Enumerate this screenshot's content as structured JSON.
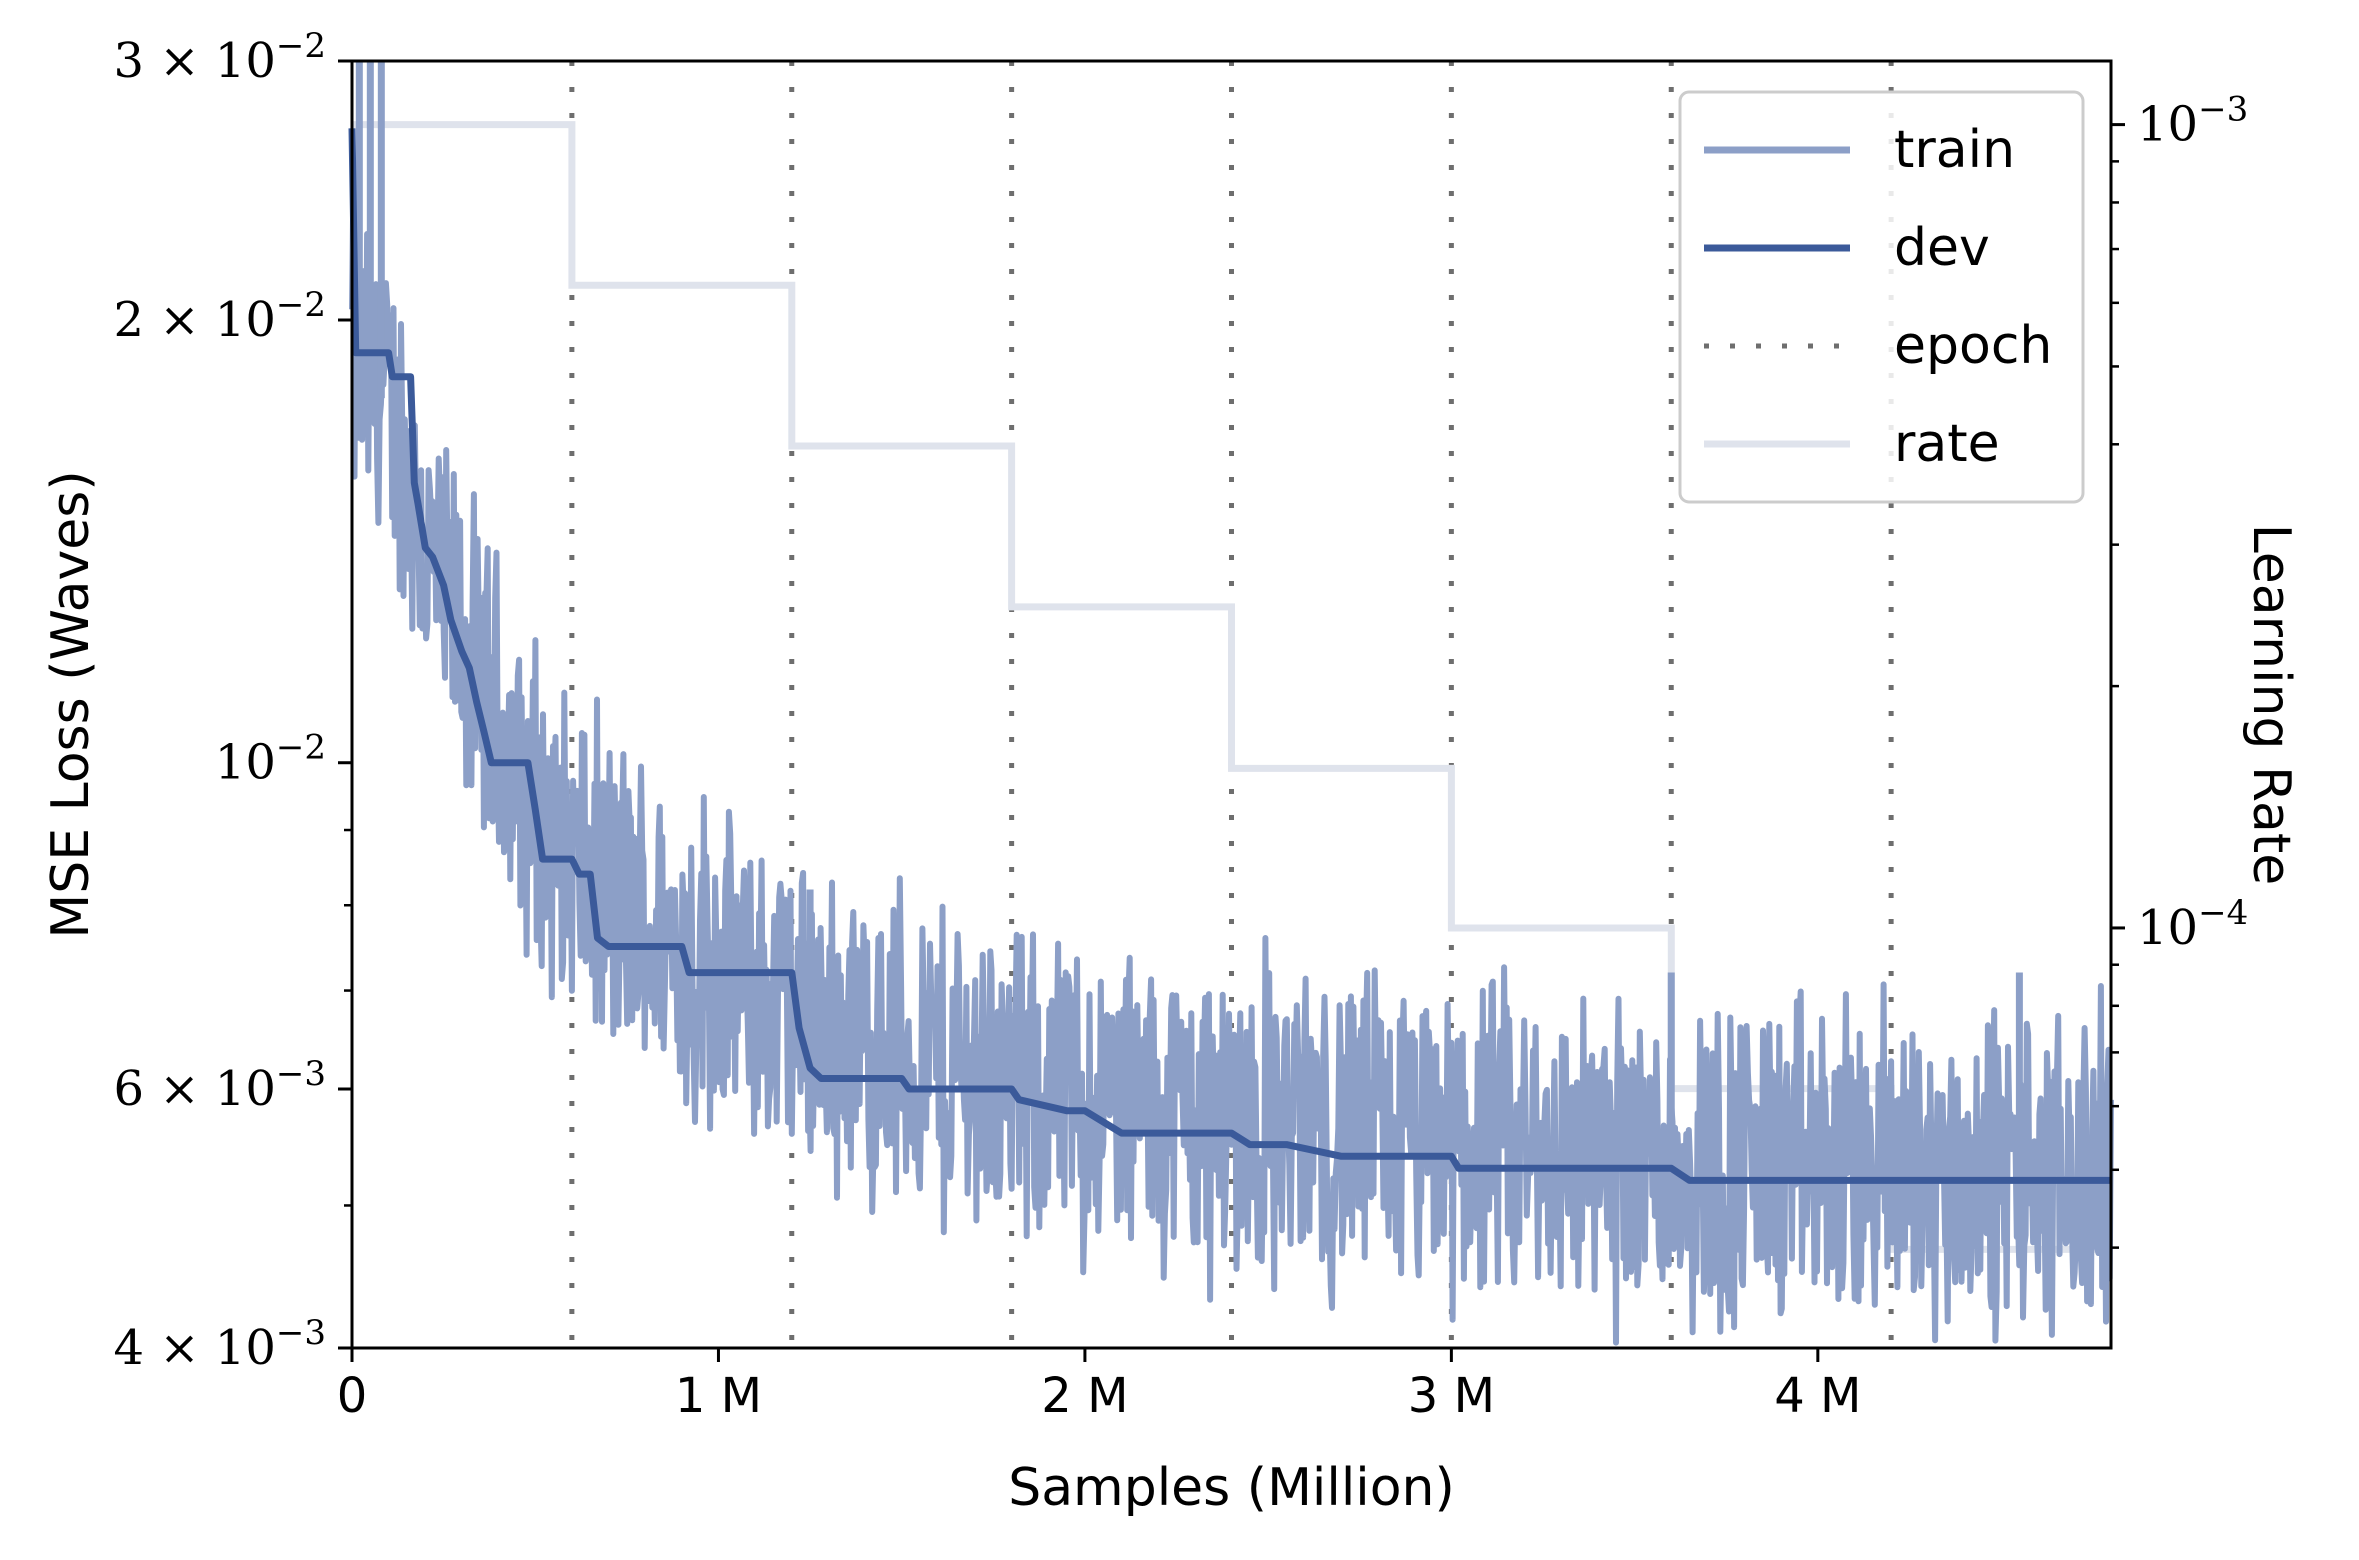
{
  "chart_data": {
    "type": "line",
    "xlabel": "Samples (Million)",
    "ylabel": "MSE Loss (Waves)",
    "y2label": "Learning Rate",
    "xlim": [
      0,
      4.8
    ],
    "ylim": [
      0.004,
      0.03
    ],
    "y2lim": [
      3e-05,
      0.0012
    ],
    "yscale": "log",
    "y2scale": "log",
    "legend_position": "top-right",
    "x_ticks": [
      {
        "value": 0,
        "label": "0"
      },
      {
        "value": 1,
        "label": "1 M"
      },
      {
        "value": 2,
        "label": "2 M"
      },
      {
        "value": 3,
        "label": "3 M"
      },
      {
        "value": 4,
        "label": "4 M"
      }
    ],
    "y_ticks": [
      {
        "value": 0.004,
        "base": "4 × 10",
        "exp": "−3"
      },
      {
        "value": 0.006,
        "base": "6 × 10",
        "exp": "−3"
      },
      {
        "value": 0.01,
        "base": "10",
        "exp": "−2"
      },
      {
        "value": 0.02,
        "base": "2 × 10",
        "exp": "−2"
      },
      {
        "value": 0.03,
        "base": "3 × 10",
        "exp": "−2"
      }
    ],
    "y2_ticks": [
      {
        "value": 0.0001,
        "base": "10",
        "exp": "−4"
      },
      {
        "value": 0.001,
        "base": "10",
        "exp": "−3"
      }
    ],
    "series": [
      {
        "name": "train",
        "color": "#8c9fc7",
        "trend_x": [
          0,
          0.05,
          0.1,
          0.2,
          0.3,
          0.4,
          0.5,
          0.6,
          0.8,
          1.0,
          1.2,
          1.5,
          2.0,
          2.5,
          3.0,
          3.5,
          4.0,
          4.5,
          4.8
        ],
        "trend_y": [
          0.019,
          0.018,
          0.0175,
          0.014,
          0.012,
          0.0105,
          0.0092,
          0.0085,
          0.0077,
          0.0072,
          0.0068,
          0.0063,
          0.0059,
          0.0057,
          0.0055,
          0.0054,
          0.0053,
          0.0052,
          0.0052
        ],
        "noise_band": 0.1,
        "spike_x": [
          0.02,
          0.05,
          0.08,
          1.25,
          3.6,
          4.55
        ],
        "spike_y": [
          0.03,
          0.03,
          0.03,
          0.0082,
          0.0072,
          0.0072
        ]
      },
      {
        "name": "dev",
        "color": "#3b5a9a",
        "x": [
          0,
          0.01,
          0.1,
          0.11,
          0.16,
          0.17,
          0.18,
          0.2,
          0.22,
          0.25,
          0.27,
          0.3,
          0.32,
          0.34,
          0.36,
          0.38,
          0.48,
          0.5,
          0.52,
          0.6,
          0.62,
          0.65,
          0.67,
          0.7,
          0.9,
          0.92,
          0.95,
          1.2,
          1.22,
          1.25,
          1.28,
          1.5,
          1.52,
          1.8,
          1.82,
          1.95,
          2.0,
          2.1,
          2.15,
          2.4,
          2.45,
          2.55,
          2.7,
          2.75,
          3.0,
          3.02,
          3.5,
          3.6,
          3.65,
          4.3,
          4.35,
          4.8
        ],
        "y": [
          0.027,
          0.019,
          0.019,
          0.0183,
          0.0183,
          0.0155,
          0.015,
          0.014,
          0.0138,
          0.0132,
          0.0125,
          0.0119,
          0.0116,
          0.011,
          0.0105,
          0.01,
          0.01,
          0.0093,
          0.0086,
          0.0086,
          0.0084,
          0.0084,
          0.0076,
          0.0075,
          0.0075,
          0.0072,
          0.0072,
          0.0072,
          0.0066,
          0.0062,
          0.0061,
          0.0061,
          0.006,
          0.006,
          0.0059,
          0.0058,
          0.0058,
          0.0056,
          0.0056,
          0.0056,
          0.0055,
          0.0055,
          0.0054,
          0.0054,
          0.0054,
          0.0053,
          0.0053,
          0.0053,
          0.0052,
          0.0052,
          0.0052,
          0.0052
        ]
      },
      {
        "name": "epoch",
        "color": "#6e6e6e",
        "x": [
          0.6,
          1.2,
          1.8,
          2.4,
          3.0,
          3.6,
          4.2
        ]
      },
      {
        "name": "rate",
        "color": "#dfe3ec",
        "axis": "right",
        "x": [
          0,
          0.6,
          0.6,
          1.2,
          1.2,
          1.8,
          1.8,
          2.4,
          2.4,
          3.0,
          3.0,
          3.6,
          3.6,
          4.2,
          4.2,
          4.8
        ],
        "y": [
          0.001,
          0.001,
          0.000631,
          0.000631,
          0.000398,
          0.000398,
          0.000251,
          0.000251,
          0.000158,
          0.000158,
          0.0001,
          0.0001,
          6.31e-05,
          6.31e-05,
          3.98e-05,
          3.98e-05
        ]
      }
    ]
  }
}
